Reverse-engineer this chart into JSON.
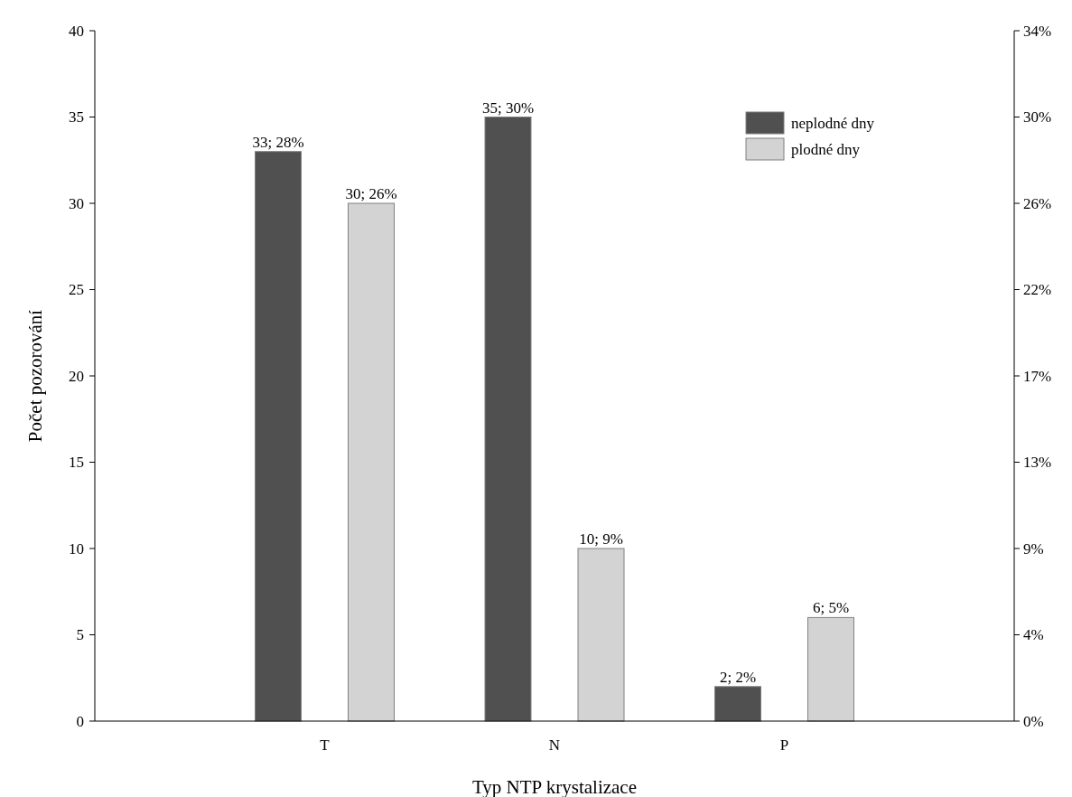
{
  "chart_data": {
    "type": "bar",
    "xlabel": "Typ NTP krystalizace",
    "ylabel": "Počet pozorování",
    "categories": [
      "T",
      "N",
      "P"
    ],
    "series": [
      {
        "name": "neplodné dny",
        "color": "#505050",
        "values": [
          33,
          35,
          2
        ],
        "value_labels": [
          "33; 28%",
          "35; 30%",
          "2; 2%"
        ]
      },
      {
        "name": "plodné dny",
        "color": "#d3d3d3",
        "values": [
          30,
          10,
          6
        ],
        "value_labels": [
          "30; 26%",
          "10; 9%",
          "6; 5%"
        ]
      }
    ],
    "ylim": [
      0,
      40
    ],
    "yticks": [
      0,
      5,
      10,
      15,
      20,
      25,
      30,
      35,
      40
    ],
    "y2lim": [
      0,
      34.48
    ],
    "y2ticks": [
      {
        "value": 0,
        "label": "0%"
      },
      {
        "value": 4.31,
        "label": "4%"
      },
      {
        "value": 8.62,
        "label": "9%"
      },
      {
        "value": 12.93,
        "label": "13%"
      },
      {
        "value": 17.24,
        "label": "17%"
      },
      {
        "value": 21.55,
        "label": "22%"
      },
      {
        "value": 25.86,
        "label": "26%"
      },
      {
        "value": 30.17,
        "label": "30%"
      },
      {
        "value": 34.48,
        "label": "34%"
      }
    ],
    "legend": "top right",
    "grid": false
  }
}
